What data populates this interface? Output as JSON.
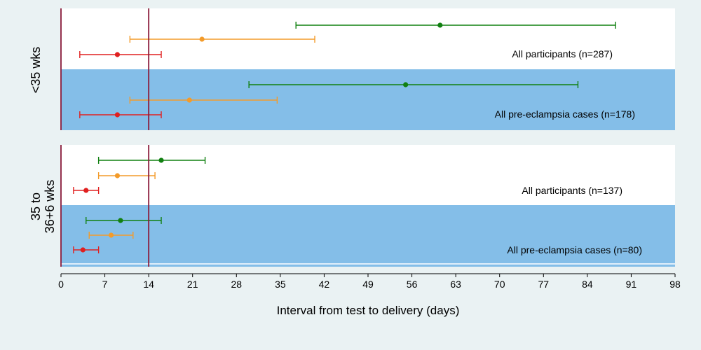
{
  "chart_data": {
    "type": "forest",
    "xlabel": "Interval from test to delivery (days)",
    "xlim": [
      0,
      98
    ],
    "xticks": [
      0,
      7,
      14,
      21,
      28,
      35,
      42,
      49,
      56,
      63,
      70,
      77,
      84,
      91,
      98
    ],
    "grid": false,
    "reference_lines": [
      0,
      14
    ],
    "colors": {
      "background": "#eaf2f3",
      "plot_band": "#ffffff",
      "shaded_band": "#84bee8",
      "reference_line": "#8b1a3a",
      "rows": [
        "#118011",
        "#f39b2a",
        "#e02020"
      ]
    },
    "panels": [
      {
        "label": "<35 wks",
        "groups": [
          {
            "label": "All participants (n=287)",
            "shaded": false,
            "rows": [
              {
                "estimate": 60.5,
                "low": 37.5,
                "high": 88.5
              },
              {
                "estimate": 22.5,
                "low": 11.0,
                "high": 40.5
              },
              {
                "estimate": 9.0,
                "low": 3.0,
                "high": 16.0
              }
            ]
          },
          {
            "label": "All pre-eclampsia cases (n=178)",
            "shaded": true,
            "rows": [
              {
                "estimate": 55.0,
                "low": 30.0,
                "high": 82.5
              },
              {
                "estimate": 20.5,
                "low": 11.0,
                "high": 34.5
              },
              {
                "estimate": 9.0,
                "low": 3.0,
                "high": 16.0
              }
            ]
          }
        ]
      },
      {
        "label_lines": [
          "35 to",
          "36+6 wks"
        ],
        "groups": [
          {
            "label": "All participants (n=137)",
            "shaded": false,
            "rows": [
              {
                "estimate": 16.0,
                "low": 6.0,
                "high": 23.0
              },
              {
                "estimate": 9.0,
                "low": 6.0,
                "high": 15.0
              },
              {
                "estimate": 4.0,
                "low": 2.0,
                "high": 6.0
              }
            ]
          },
          {
            "label": "All pre-eclampsia cases (n=80)",
            "shaded": true,
            "rows": [
              {
                "estimate": 9.5,
                "low": 4.0,
                "high": 16.0
              },
              {
                "estimate": 8.0,
                "low": 4.5,
                "high": 11.5
              },
              {
                "estimate": 3.5,
                "low": 2.0,
                "high": 6.0
              }
            ]
          }
        ]
      }
    ]
  }
}
